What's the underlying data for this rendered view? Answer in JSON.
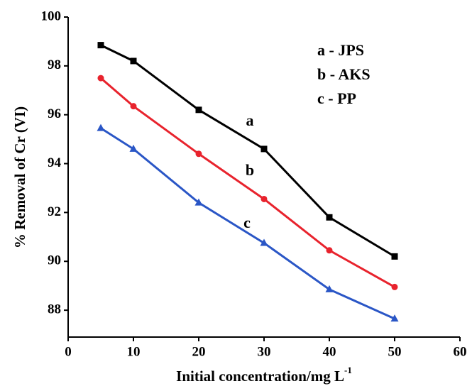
{
  "chart_data": {
    "type": "line",
    "y_label": "% Removal of Cr (VI)",
    "x_label": "Initial concentration/mg L",
    "x_label_superscript": "-1",
    "xlim": [
      0,
      60
    ],
    "xticks": [
      0,
      10,
      20,
      30,
      40,
      50,
      60
    ],
    "ylim": [
      86.9,
      100
    ],
    "yticks": [
      88,
      90,
      92,
      94,
      96,
      98,
      100
    ],
    "x": [
      5,
      10,
      20,
      30,
      40,
      50
    ],
    "series": [
      {
        "name": "a - JPS",
        "color": "#000000",
        "marker": "square",
        "values": [
          98.85,
          98.2,
          96.2,
          94.6,
          91.8,
          90.2
        ]
      },
      {
        "name": "b - AKS",
        "color": "#e8232d",
        "marker": "circle",
        "values": [
          97.5,
          96.35,
          94.4,
          92.55,
          90.45,
          88.95
        ]
      },
      {
        "name": "c - PP",
        "color": "#2a56c6",
        "marker": "triangle",
        "values": [
          95.45,
          94.6,
          92.4,
          90.75,
          88.85,
          87.65
        ]
      }
    ],
    "annotations": [
      "a",
      "b",
      "c"
    ]
  }
}
